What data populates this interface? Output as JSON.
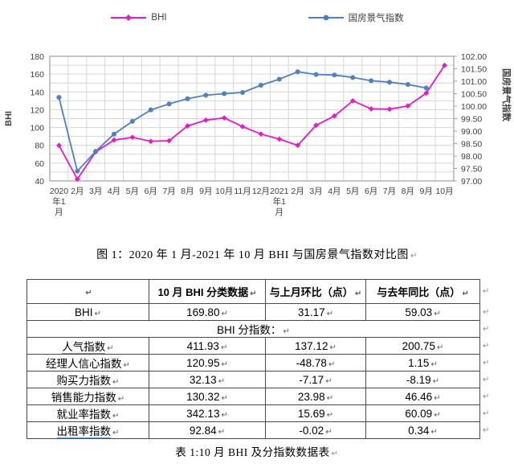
{
  "figure": {
    "caption": "图 1：2020 年 1 月-2021 年 10 月 BHI 与国房景气指数对比图"
  },
  "chart_data": {
    "type": "line",
    "grid": true,
    "legend_position": "top",
    "x_categories": [
      "2020年1月",
      "2月",
      "3月",
      "4月",
      "5月",
      "6月",
      "7月",
      "8月",
      "9月",
      "10月",
      "11月",
      "12月",
      "2021年1月",
      "2月",
      "3月",
      "4月",
      "5月",
      "6月",
      "7月",
      "8月",
      "9月",
      "10月"
    ],
    "series": [
      {
        "name": "BHI",
        "yaxis": "left",
        "color": "#e619cb",
        "marker": "diamond",
        "values": [
          79.9,
          42.0,
          72.7,
          86.0,
          89.0,
          84.5,
          85.2,
          101.8,
          108.3,
          110.77,
          101.0,
          92.7,
          87.0,
          80.0,
          102.5,
          113.0,
          130.0,
          121.0,
          120.6,
          124.3,
          138.63,
          169.8
        ]
      },
      {
        "name": "国房景气指数",
        "yaxis": "right",
        "color": "#4f81bd",
        "marker": "circle",
        "values": [
          100.35,
          97.39,
          98.19,
          98.88,
          99.39,
          99.85,
          100.09,
          100.3,
          100.44,
          100.5,
          100.55,
          100.84,
          101.08,
          101.38,
          101.27,
          101.25,
          101.15,
          101.02,
          100.96,
          100.87,
          100.73,
          null
        ]
      }
    ],
    "axes": {
      "left": {
        "label": "BHI",
        "min": 40,
        "max": 180,
        "grid_step": 10,
        "ticks": [
          180,
          160,
          140,
          120,
          100,
          80,
          60,
          40
        ]
      },
      "right": {
        "label": "国房景气指数",
        "min": 97,
        "max": 102,
        "ticks": [
          "102.00",
          "101.50",
          "101.00",
          "100.50",
          "100.00",
          "99.50",
          "99.00",
          "98.50",
          "98.00",
          "97.50",
          "97.00"
        ]
      }
    }
  },
  "table": {
    "headers": [
      "",
      "10 月 BHI 分类数据",
      "与上月环比（点）",
      "与去年同比（点）"
    ],
    "rows": [
      {
        "label": "BHI",
        "values": [
          "169.80",
          "31.17",
          "59.03"
        ]
      },
      {
        "label": "BHI 分指数：",
        "merged": true,
        "values": []
      },
      {
        "label": "人气指数",
        "values": [
          "411.93",
          "137.12",
          "200.75"
        ]
      },
      {
        "label": "经理人信心指数",
        "values": [
          "120.95",
          "-48.78",
          "1.15"
        ]
      },
      {
        "label": "购买力指数",
        "values": [
          "32.13",
          "-7.17",
          "-8.19"
        ]
      },
      {
        "label": "销售能力指数",
        "values": [
          "130.32",
          "23.98",
          "46.46"
        ]
      },
      {
        "label": "就业率指数",
        "values": [
          "342.13",
          "15.69",
          "60.09"
        ]
      },
      {
        "label": "出租率指数",
        "values": [
          "92.84",
          "-0.02",
          "0.34"
        ]
      }
    ],
    "caption": "表 1:10 月 BHI 及分指数数据表"
  },
  "marks": {
    "pilcrow": "↵"
  }
}
